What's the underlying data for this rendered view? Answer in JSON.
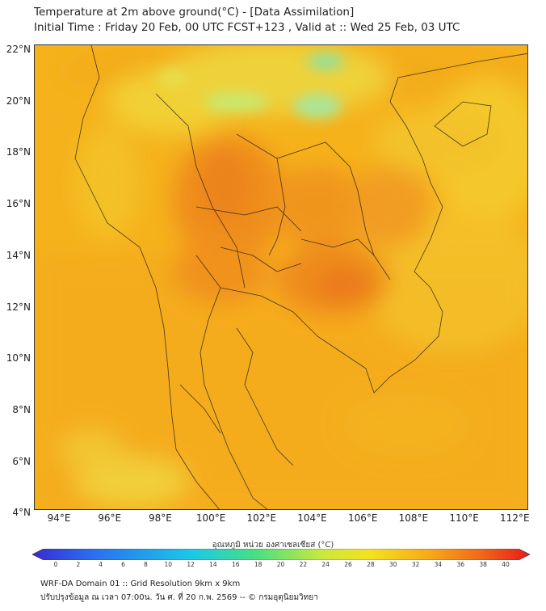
{
  "title_line1": "Temperature at 2m above ground(°C) - [Data Assimilation]",
  "title_line2": "Initial Time : Friday 20 Feb, 00 UTC FCST+123 , Valid at :: Wed 25 Feb, 03 UTC",
  "lat_labels": [
    "22°N",
    "20°N",
    "18°N",
    "16°N",
    "14°N",
    "12°N",
    "10°N",
    "8°N",
    "6°N",
    "4°N"
  ],
  "lon_labels": [
    "94°E",
    "96°E",
    "98°E",
    "100°E",
    "102°E",
    "104°E",
    "106°E",
    "108°E",
    "110°E",
    "112°E"
  ],
  "colorbar": {
    "title": "อุณหภูมิ หน่วย องศาเซลเซียส (°C)",
    "ticks": [
      "0",
      "2",
      "4",
      "6",
      "8",
      "10",
      "12",
      "14",
      "16",
      "18",
      "20",
      "22",
      "24",
      "26",
      "28",
      "30",
      "32",
      "34",
      "36",
      "38",
      "40"
    ]
  },
  "footer_line1": "WRF-DA Domain 01 :: Grid Resolution 9km x 9km",
  "footer_line2": "ปรับปรุงข้อมูล ณ เวลา 07:00น. วัน ศ. ที่ 20 ก.พ. 2569 -- © กรมอุตุนิยมวิทยา"
}
